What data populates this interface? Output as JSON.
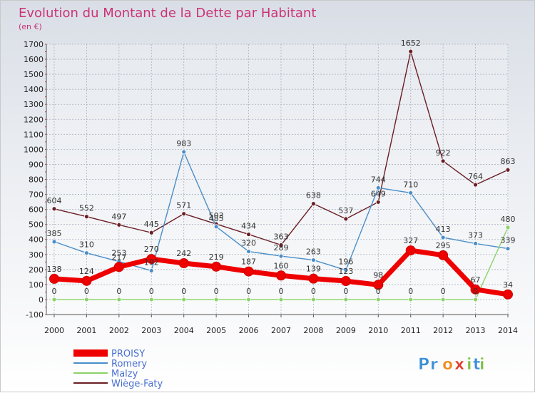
{
  "chart_data": {
    "type": "line",
    "title": "Evolution du Montant de la Dette par Habitant",
    "subtitle": "(en €)",
    "x": [
      "2000",
      "2001",
      "2002",
      "2003",
      "2004",
      "2005",
      "2006",
      "2007",
      "2008",
      "2009",
      "2010",
      "2011",
      "2012",
      "2013",
      "2014"
    ],
    "ylim": [
      -100,
      1700
    ],
    "yticks": [
      -100,
      0,
      100,
      200,
      300,
      400,
      500,
      600,
      700,
      800,
      900,
      1000,
      1100,
      1200,
      1300,
      1400,
      1500,
      1600,
      1700
    ],
    "grid": true,
    "legend_position": "bottom-left",
    "series": [
      {
        "name": "Wiège-Faty",
        "color": "#6b1e24",
        "values": [
          604,
          552,
          497,
          445,
          571,
          503,
          434,
          363,
          638,
          537,
          649,
          1652,
          922,
          764,
          863
        ]
      },
      {
        "name": "Romery",
        "color": "#4a8ec8",
        "values": [
          385,
          310,
          253,
          192,
          983,
          485,
          320,
          289,
          263,
          196,
          744,
          710,
          413,
          373,
          339
        ]
      },
      {
        "name": "Malzy",
        "color": "#8cd26a",
        "values": [
          0,
          0,
          0,
          0,
          0,
          0,
          0,
          0,
          0,
          0,
          0,
          0,
          0,
          0,
          480
        ]
      },
      {
        "name": "PROISY",
        "color": "#ee0000",
        "values": [
          138,
          124,
          217,
          270,
          242,
          219,
          187,
          160,
          139,
          123,
          98,
          327,
          295,
          67,
          34
        ]
      }
    ],
    "data_labels": {
      "Wiège-Faty": [
        "604",
        "552",
        "497",
        "445",
        "571",
        "503",
        "434",
        "363",
        "638",
        "537",
        "649",
        "1652",
        "922",
        "764",
        "863"
      ],
      "Romery": [
        "385",
        "310",
        "253",
        "192",
        "983",
        "485",
        "320",
        "289",
        "263",
        "196",
        "744",
        "710",
        "413",
        "373",
        "339"
      ],
      "Malzy": [
        "0",
        "0",
        "0",
        "0",
        "0",
        "0",
        "0",
        "0",
        "0",
        "0",
        "0",
        "0",
        "0",
        "0",
        "480"
      ],
      "PROISY": [
        "138",
        "124",
        "217",
        "270",
        "242",
        "219",
        "187",
        "160",
        "139",
        "123",
        "98",
        "327",
        "295",
        "67",
        "34"
      ]
    },
    "legend_order": [
      "PROISY",
      "Romery",
      "Malzy",
      "Wiège-Faty"
    ]
  },
  "watermark": "Proxiti"
}
